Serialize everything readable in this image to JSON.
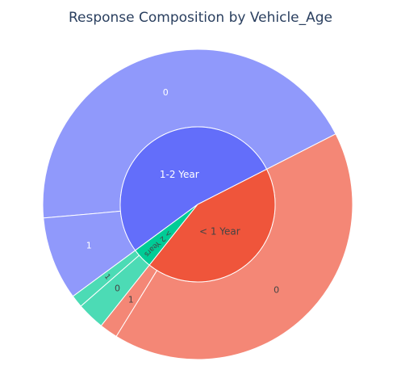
{
  "chart_data": {
    "type": "sunburst",
    "title": "Response Composition by Vehicle_Age",
    "inner": [
      {
        "label": "1-2 Year",
        "value": 52.6,
        "color": "#636efa"
      },
      {
        "label": "> 2 Years",
        "value": 4.2,
        "color": "#00cc96"
      },
      {
        "label": "< 1 Year",
        "value": 43.2,
        "color": "#ef553b"
      }
    ],
    "outer": [
      {
        "parent": "1-2 Year",
        "label": "0",
        "value": 43.9,
        "color": "#9099fb"
      },
      {
        "parent": "1-2 Year",
        "label": "1",
        "value": 8.7,
        "color": "#9099fb"
      },
      {
        "parent": "> 2 Years",
        "label": "1",
        "value": 1.3,
        "color": "#4cdbb5"
      },
      {
        "parent": "> 2 Years",
        "label": "0",
        "value": 2.9,
        "color": "#4cdbb5"
      },
      {
        "parent": "< 1 Year",
        "label": "1",
        "value": 1.9,
        "color": "#f48776"
      },
      {
        "parent": "< 1 Year",
        "label": "0",
        "value": 41.3,
        "color": "#f48776"
      }
    ]
  }
}
